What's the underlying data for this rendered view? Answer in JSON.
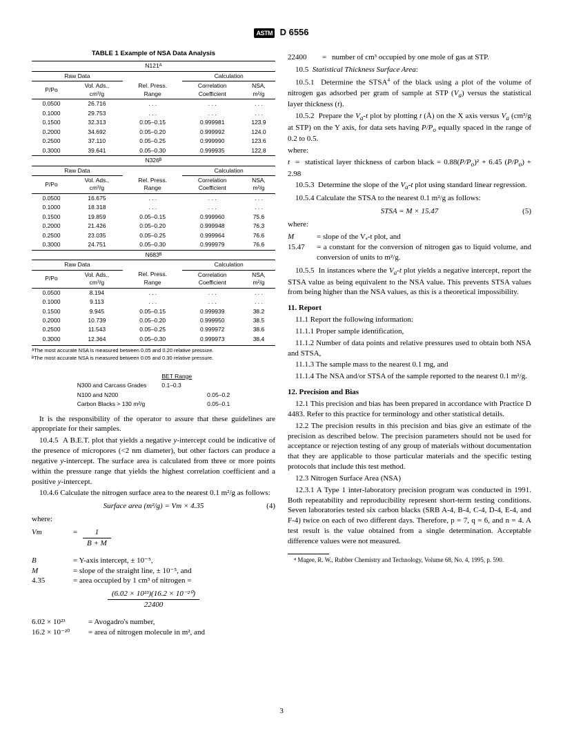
{
  "header": {
    "logo": "ASTM",
    "std": "D 6556"
  },
  "table": {
    "title": "TABLE 1  Example of NSA Data Analysis",
    "groups": [
      "Raw Data",
      "Calculation"
    ],
    "columns": [
      "P/Po",
      "Vol. Ads., cm³/g",
      "Rel. Press. Range",
      "Correlation Coefficient",
      "NSA, m²/g"
    ],
    "sections": [
      {
        "name": "N121ᴬ",
        "rows": [
          [
            "0.0500",
            "26.716",
            ". . .",
            ". . .",
            ". . ."
          ],
          [
            "0.1000",
            "29.753",
            ". . .",
            ". . .",
            ". . ."
          ],
          [
            "0.1500",
            "32.313",
            "0.05–0.15",
            "0.999981",
            "123.9"
          ],
          [
            "0.2000",
            "34.692",
            "0.05–0.20",
            "0.999992",
            "124.0"
          ],
          [
            "0.2500",
            "37.110",
            "0.05–0.25",
            "0.999990",
            "123.6"
          ],
          [
            "0.3000",
            "39.641",
            "0.05–0.30",
            "0.999935",
            "122.8"
          ]
        ]
      },
      {
        "name": "N326ᴮ",
        "rows": [
          [
            "0.0500",
            "16.675",
            ". . .",
            ". . .",
            ". . ."
          ],
          [
            "0.1000",
            "18.318",
            ". . .",
            ". . .",
            ". . ."
          ],
          [
            "0.1500",
            "19.859",
            "0.05–0.15",
            "0.999960",
            "75.6"
          ],
          [
            "0.2000",
            "21.426",
            "0.05–0.20",
            "0.999948",
            "76.3"
          ],
          [
            "0.2500",
            "23.035",
            "0.05–0.25",
            "0.999964",
            "76.6"
          ],
          [
            "0.3000",
            "24.751",
            "0.05–0.30",
            "0.999979",
            "76.6"
          ]
        ]
      },
      {
        "name": "N683ᴮ",
        "rows": [
          [
            "0.0500",
            "8.194",
            ". . .",
            ". . .",
            ". . ."
          ],
          [
            "0.1000",
            "9.113",
            ". . .",
            ". . .",
            ". . ."
          ],
          [
            "0.1500",
            "9.945",
            "0.05–0.15",
            "0.999939",
            "38.2"
          ],
          [
            "0.2000",
            "10.739",
            "0.05–0.20",
            "0.999950",
            "38.5"
          ],
          [
            "0.2500",
            "11.543",
            "0.05–0.25",
            "0.999972",
            "38.6"
          ],
          [
            "0.3000",
            "12.364",
            "0.05–0.30",
            "0.999973",
            "38.4"
          ]
        ]
      }
    ],
    "footnotes": [
      "ᴬThe most accurate NSA is measured between 0.05 and 0.20 relative pressure.",
      "ᴮThe most accurate NSA is measured between 0.05 and 0.30 relative pressure."
    ]
  },
  "bet_table": {
    "header": "BET Range",
    "rows": [
      [
        "N300 and Carcass Grades",
        "0.1–0.3"
      ],
      [
        "N100 and N200",
        "",
        "0.05–0.2"
      ],
      [
        "Carbon Blacks > 130 m²/g",
        "",
        "0.05–0.1"
      ]
    ]
  },
  "left": {
    "p1": "It is the responsibility of the operator to assure that these guidelines are appropriate for their samples.",
    "p2": "10.4.5  A B.E.T. plot that yields a negative y-intercept could be indicative of the presence of micropores (<2 nm diameter), but other factors can produce a negative y-intercept. The surface area is calculated from three or more points within the pressure range that yields the highest correlation coefficient and a positive y-intercept.",
    "p3": "10.4.6  Calculate the nitrogen surface area to the nearest 0.1 m²/g as follows:",
    "eq4": "Surface area (m²/g) = Vm × 4.35",
    "eq4num": "(4)",
    "where": "where:",
    "vm_def_top": "1",
    "vm_def_bot": "B + M",
    "defs": [
      [
        "B",
        "= Y-axis intercept, ± 10⁻⁵,"
      ],
      [
        "M",
        "= slope of the straight line, ± 10⁻⁵, and"
      ],
      [
        "4.35",
        "= area occupied by 1 cm³ of nitrogen ="
      ]
    ],
    "frac435_top": "(6.02 × 10²³)(16.2 × 10⁻²⁰)",
    "frac435_bot": "22400",
    "defs2": [
      [
        "6.02 × 10²³",
        "= Avogadro's number,"
      ],
      [
        "16.2 × 10⁻²⁰",
        "= area of nitrogen molecule in m², and"
      ]
    ]
  },
  "right": {
    "def22400": [
      "22400",
      "= number of cm³ occupied by one mole of gas at STP."
    ],
    "s105": "10.5  Statistical Thickness Surface Area:",
    "p1051": "10.5.1  Determine the STSA⁴ of the black using a plot of the volume of nitrogen gas adsorbed per gram of sample at STP (Vₐ) versus the statistical layer thickness (t).",
    "p1052": "10.5.2  Prepare the Vₐ-t plot by plotting t (Å) on the X axis versus Vₐ (cm³/g at STP) on the Y axis, for data sets having P/Pₒ equally spaced in the range of 0.2 to 0.5.",
    "where": "where:",
    "tdef": "t   =  statistical layer thickness of carbon black = 0.88(P/Pₒ)² + 6.45 (P/Pₒ) + 2.98",
    "p1053": "10.5.3  Determine the slope of the Vₐ-t plot using standard linear regression.",
    "p1054": "10.5.4  Calculate the STSA to the nearest 0.1 m²/g as follows:",
    "eq5": "STSA = M × 15.47",
    "eq5num": "(5)",
    "where2": "where:",
    "defs": [
      [
        "M",
        "= slope of the Vₐ-t plot, and"
      ],
      [
        "15.47",
        "= a constant for the conversion of nitrogen gas to liquid volume, and conversion of units to m²/g."
      ]
    ],
    "p1055": "10.5.5  In instances where the Vₐ-t plot yields a negative intercept, report the STSA value as being equivalent to the NSA value. This prevents STSA values from being higher than the NSA values, as this is a theoretical impossibility.",
    "h11": "11.  Report",
    "p111": "11.1  Report the following information:",
    "p1111": "11.1.1  Proper sample identification,",
    "p1112": "11.1.2  Number of data points and relative pressures used to obtain both NSA and STSA,",
    "p1113": "11.1.3  The sample mass to the nearest 0.1 mg, and",
    "p1114": "11.1.4  The NSA and/or STSA of the sample reported to the nearest 0.1 m²/g.",
    "h12": "12.  Precision and Bias",
    "p121": "12.1  This precision and bias has been prepared in accordance with Practice D 4483. Refer to this practice for terminology and other statistical details.",
    "p122": "12.2  The precision results in this precision and bias give an estimate of the precision as described below. The precision parameters should not be used for acceptance or rejection testing of any group of materials without documentation that they are applicable to those particular materials and the specific testing protocols that include this test method.",
    "p123": "12.3  Nitrogen Surface Area (NSA)",
    "p1231": "12.3.1  A Type 1 inter-laboratory precision program was conducted in 1991. Both repeatability and reproducibility represent short-term testing conditions. Seven laboratories tested six carbon blacks (SRB A-4, B-4, C-4, D-4, E-4, and F-4) twice on each of two different days. Therefore, p = 7, q = 6, and n = 4. A test result is the value obtained from a single determination. Acceptable difference values were not measured.",
    "footnote": "⁴ Magee, R. W., Rubber Chemistry and Technology, Volume 68, No. 4, 1995, p. 590."
  },
  "page_number": "3"
}
